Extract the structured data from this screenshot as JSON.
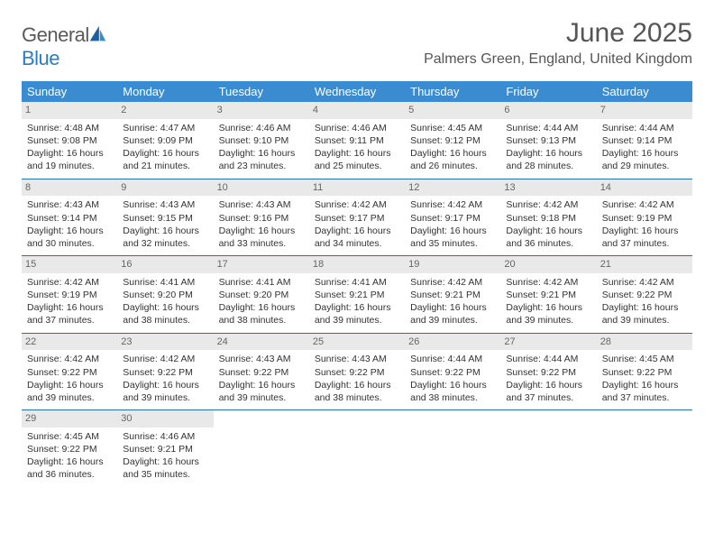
{
  "brand": {
    "word1": "General",
    "word2": "Blue"
  },
  "title": "June 2025",
  "location": "Palmers Green, England, United Kingdom",
  "colors": {
    "header_bg": "#3b8bd0",
    "header_text": "#ffffff",
    "daynum_bg": "#e9e9e9",
    "daynum_text": "#666666",
    "week_divider": "#2a6fa8",
    "body_text": "#333333",
    "title_text": "#555555"
  },
  "day_names": [
    "Sunday",
    "Monday",
    "Tuesday",
    "Wednesday",
    "Thursday",
    "Friday",
    "Saturday"
  ],
  "weeks": [
    [
      {
        "n": "1",
        "sr": "Sunrise: 4:48 AM",
        "ss": "Sunset: 9:08 PM",
        "d1": "Daylight: 16 hours",
        "d2": "and 19 minutes."
      },
      {
        "n": "2",
        "sr": "Sunrise: 4:47 AM",
        "ss": "Sunset: 9:09 PM",
        "d1": "Daylight: 16 hours",
        "d2": "and 21 minutes."
      },
      {
        "n": "3",
        "sr": "Sunrise: 4:46 AM",
        "ss": "Sunset: 9:10 PM",
        "d1": "Daylight: 16 hours",
        "d2": "and 23 minutes."
      },
      {
        "n": "4",
        "sr": "Sunrise: 4:46 AM",
        "ss": "Sunset: 9:11 PM",
        "d1": "Daylight: 16 hours",
        "d2": "and 25 minutes."
      },
      {
        "n": "5",
        "sr": "Sunrise: 4:45 AM",
        "ss": "Sunset: 9:12 PM",
        "d1": "Daylight: 16 hours",
        "d2": "and 26 minutes."
      },
      {
        "n": "6",
        "sr": "Sunrise: 4:44 AM",
        "ss": "Sunset: 9:13 PM",
        "d1": "Daylight: 16 hours",
        "d2": "and 28 minutes."
      },
      {
        "n": "7",
        "sr": "Sunrise: 4:44 AM",
        "ss": "Sunset: 9:14 PM",
        "d1": "Daylight: 16 hours",
        "d2": "and 29 minutes."
      }
    ],
    [
      {
        "n": "8",
        "sr": "Sunrise: 4:43 AM",
        "ss": "Sunset: 9:14 PM",
        "d1": "Daylight: 16 hours",
        "d2": "and 30 minutes."
      },
      {
        "n": "9",
        "sr": "Sunrise: 4:43 AM",
        "ss": "Sunset: 9:15 PM",
        "d1": "Daylight: 16 hours",
        "d2": "and 32 minutes."
      },
      {
        "n": "10",
        "sr": "Sunrise: 4:43 AM",
        "ss": "Sunset: 9:16 PM",
        "d1": "Daylight: 16 hours",
        "d2": "and 33 minutes."
      },
      {
        "n": "11",
        "sr": "Sunrise: 4:42 AM",
        "ss": "Sunset: 9:17 PM",
        "d1": "Daylight: 16 hours",
        "d2": "and 34 minutes."
      },
      {
        "n": "12",
        "sr": "Sunrise: 4:42 AM",
        "ss": "Sunset: 9:17 PM",
        "d1": "Daylight: 16 hours",
        "d2": "and 35 minutes."
      },
      {
        "n": "13",
        "sr": "Sunrise: 4:42 AM",
        "ss": "Sunset: 9:18 PM",
        "d1": "Daylight: 16 hours",
        "d2": "and 36 minutes."
      },
      {
        "n": "14",
        "sr": "Sunrise: 4:42 AM",
        "ss": "Sunset: 9:19 PM",
        "d1": "Daylight: 16 hours",
        "d2": "and 37 minutes."
      }
    ],
    [
      {
        "n": "15",
        "sr": "Sunrise: 4:42 AM",
        "ss": "Sunset: 9:19 PM",
        "d1": "Daylight: 16 hours",
        "d2": "and 37 minutes."
      },
      {
        "n": "16",
        "sr": "Sunrise: 4:41 AM",
        "ss": "Sunset: 9:20 PM",
        "d1": "Daylight: 16 hours",
        "d2": "and 38 minutes."
      },
      {
        "n": "17",
        "sr": "Sunrise: 4:41 AM",
        "ss": "Sunset: 9:20 PM",
        "d1": "Daylight: 16 hours",
        "d2": "and 38 minutes."
      },
      {
        "n": "18",
        "sr": "Sunrise: 4:41 AM",
        "ss": "Sunset: 9:21 PM",
        "d1": "Daylight: 16 hours",
        "d2": "and 39 minutes."
      },
      {
        "n": "19",
        "sr": "Sunrise: 4:42 AM",
        "ss": "Sunset: 9:21 PM",
        "d1": "Daylight: 16 hours",
        "d2": "and 39 minutes."
      },
      {
        "n": "20",
        "sr": "Sunrise: 4:42 AM",
        "ss": "Sunset: 9:21 PM",
        "d1": "Daylight: 16 hours",
        "d2": "and 39 minutes."
      },
      {
        "n": "21",
        "sr": "Sunrise: 4:42 AM",
        "ss": "Sunset: 9:22 PM",
        "d1": "Daylight: 16 hours",
        "d2": "and 39 minutes."
      }
    ],
    [
      {
        "n": "22",
        "sr": "Sunrise: 4:42 AM",
        "ss": "Sunset: 9:22 PM",
        "d1": "Daylight: 16 hours",
        "d2": "and 39 minutes."
      },
      {
        "n": "23",
        "sr": "Sunrise: 4:42 AM",
        "ss": "Sunset: 9:22 PM",
        "d1": "Daylight: 16 hours",
        "d2": "and 39 minutes."
      },
      {
        "n": "24",
        "sr": "Sunrise: 4:43 AM",
        "ss": "Sunset: 9:22 PM",
        "d1": "Daylight: 16 hours",
        "d2": "and 39 minutes."
      },
      {
        "n": "25",
        "sr": "Sunrise: 4:43 AM",
        "ss": "Sunset: 9:22 PM",
        "d1": "Daylight: 16 hours",
        "d2": "and 38 minutes."
      },
      {
        "n": "26",
        "sr": "Sunrise: 4:44 AM",
        "ss": "Sunset: 9:22 PM",
        "d1": "Daylight: 16 hours",
        "d2": "and 38 minutes."
      },
      {
        "n": "27",
        "sr": "Sunrise: 4:44 AM",
        "ss": "Sunset: 9:22 PM",
        "d1": "Daylight: 16 hours",
        "d2": "and 37 minutes."
      },
      {
        "n": "28",
        "sr": "Sunrise: 4:45 AM",
        "ss": "Sunset: 9:22 PM",
        "d1": "Daylight: 16 hours",
        "d2": "and 37 minutes."
      }
    ],
    [
      {
        "n": "29",
        "sr": "Sunrise: 4:45 AM",
        "ss": "Sunset: 9:22 PM",
        "d1": "Daylight: 16 hours",
        "d2": "and 36 minutes."
      },
      {
        "n": "30",
        "sr": "Sunrise: 4:46 AM",
        "ss": "Sunset: 9:21 PM",
        "d1": "Daylight: 16 hours",
        "d2": "and 35 minutes."
      },
      {
        "empty": true
      },
      {
        "empty": true
      },
      {
        "empty": true
      },
      {
        "empty": true
      },
      {
        "empty": true
      }
    ]
  ]
}
